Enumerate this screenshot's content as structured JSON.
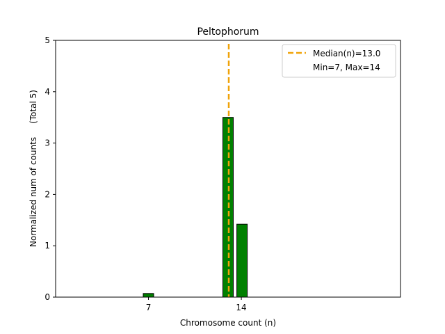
{
  "chart_data": {
    "type": "bar",
    "title": "Peltophorum",
    "xlabel": "Chromosome count (n)",
    "ylabel": "Normalized num of counts     (Total 5)",
    "xlim": [
      0,
      26
    ],
    "ylim": [
      0,
      5
    ],
    "xticks": [
      7,
      14
    ],
    "yticks": [
      0,
      1,
      2,
      3,
      4,
      5
    ],
    "bars": [
      {
        "x": 7,
        "value": 0.07
      },
      {
        "x": 13,
        "value": 3.5
      },
      {
        "x": 14,
        "value": 1.42
      }
    ],
    "bar_color": "#008000",
    "median": {
      "value": 13.0,
      "label": "Median(n)=13.0",
      "color": "#f0a30a"
    },
    "legend": {
      "position": "top-right",
      "entries": [
        "Median(n)=13.0",
        "Min=7, Max=14"
      ]
    }
  }
}
